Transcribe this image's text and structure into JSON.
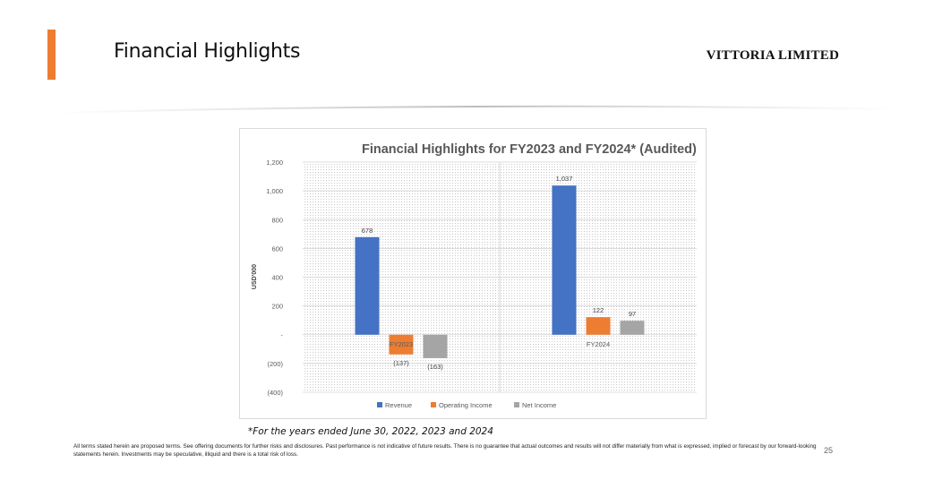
{
  "slide": {
    "title": "Financial Highlights",
    "company": "VITTORIA LIMITED",
    "footnote": "*For the years ended June 30, 2022, 2023 and 2024",
    "disclaimer": "All terms stated herein are proposed terms. See offering documents for further risks and disclosures. Past performance is not indicative of future results. There is no guarantee that actual outcomes and results will not differ materially from what is expressed, implied or forecast by our forward-looking statements herein. Investments may be speculative, illiquid and there is a total risk of loss.",
    "page_number": "25",
    "accent_color": "#ED7D31"
  },
  "chart_data": {
    "type": "bar",
    "title": "Financial Highlights  for FY2023 and FY2024* (Audited)",
    "ylabel": "USD'000",
    "xlabel": "",
    "categories": [
      "FY2023",
      "FY2024"
    ],
    "series": [
      {
        "name": "Revenue",
        "color": "#4472C4",
        "values": [
          678,
          1037
        ],
        "labels": [
          "678",
          "1,037"
        ]
      },
      {
        "name": "Operating Income",
        "color": "#ED7D31",
        "values": [
          -137,
          122
        ],
        "labels": [
          "(137)",
          "122"
        ]
      },
      {
        "name": "Net Income",
        "color": "#A5A5A5",
        "values": [
          -163,
          97
        ],
        "labels": [
          "(163)",
          "97"
        ]
      }
    ],
    "ylim": [
      -400,
      1200
    ],
    "yticks": [
      1200,
      1000,
      800,
      600,
      400,
      200,
      0,
      -200,
      -400
    ],
    "ytick_labels": [
      "1,200",
      "1,000",
      "800",
      "600",
      "400",
      "200",
      "-",
      "(200)",
      "(400)"
    ],
    "grid": true,
    "legend": "bottom"
  }
}
